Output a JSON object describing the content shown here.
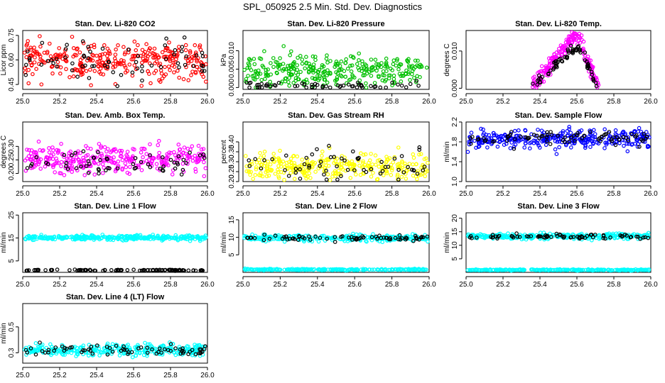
{
  "figure": {
    "title": "SPL_050925  2.5 Min. Std. Dev. Diagnostics",
    "colors": {
      "reference": "#000000",
      "red": "#ff0000",
      "green": "#00c000",
      "magenta": "#ff00ff",
      "yellow": "#ffff00",
      "blue": "#0000ff",
      "cyan": "#00ffff"
    }
  },
  "chart_data": [
    {
      "type": "scatter",
      "title": "Stan. Dev. Li-820 CO2",
      "ylabel": "Licor ppm",
      "xlim": [
        25.0,
        26.0
      ],
      "xticks": [
        "25.0",
        "25.2",
        "25.4",
        "25.6",
        "25.8",
        "26.0"
      ],
      "ylim": [
        0.42,
        0.78
      ],
      "yticks": [
        "0.45",
        "0.60",
        "0.75"
      ],
      "series": [
        {
          "name": "main",
          "color": "red",
          "pattern": "band",
          "n": 330,
          "center": 0.6,
          "spread": 0.055,
          "min": 0.44,
          "max": 0.77
        },
        {
          "name": "reference",
          "color": "reference",
          "pattern": "band",
          "n": 70,
          "center": 0.59,
          "spread": 0.06,
          "min": 0.44,
          "max": 0.75
        }
      ]
    },
    {
      "type": "scatter",
      "title": "Stan. Dev. Li-820 Pressure",
      "ylabel": "kPa",
      "xlim": [
        25.0,
        26.0
      ],
      "xticks": [
        "25.0",
        "25.2",
        "25.4",
        "25.6",
        "25.8",
        "26.0"
      ],
      "ylim": [
        -0.0005,
        0.0155
      ],
      "yticks": [
        "0.000",
        "0.005",
        "0.010"
      ],
      "series": [
        {
          "name": "main",
          "color": "green",
          "pattern": "band",
          "n": 320,
          "center": 0.0045,
          "spread": 0.0022,
          "min": 0.0,
          "max": 0.015
        },
        {
          "name": "reference",
          "color": "reference",
          "pattern": "band",
          "n": 60,
          "center": 0.0004,
          "spread": 0.0005,
          "min": 0.0,
          "max": 0.003
        }
      ]
    },
    {
      "type": "scatter",
      "title": "Stan. Dev. Li-820 Temp.",
      "ylabel": "degrees C",
      "xlim": [
        25.0,
        26.0
      ],
      "xticks": [
        "25.0",
        "25.2",
        "25.4",
        "25.6",
        "25.8",
        "26.0"
      ],
      "ylim": [
        -0.0003,
        0.0155
      ],
      "yticks": [
        "0.000",
        "0.010"
      ],
      "series": [
        {
          "name": "main",
          "color": "magenta",
          "pattern": "hump",
          "n": 250,
          "peak": 0.0145,
          "from": 25.35,
          "peakx": 25.6,
          "to": 25.72,
          "spread": 0.0012,
          "min": 0.0,
          "max": 0.0155
        },
        {
          "name": "reference",
          "color": "reference",
          "pattern": "hump",
          "n": 90,
          "peak": 0.0115,
          "from": 25.35,
          "peakx": 25.6,
          "to": 25.72,
          "spread": 0.0008,
          "min": 0.0,
          "max": 0.0155
        }
      ]
    },
    {
      "type": "scatter",
      "title": "Stan. Dev. Amb. Box Temp.",
      "ylabel": "degrees C",
      "xlim": [
        25.0,
        26.0
      ],
      "xticks": [
        "25.0",
        "25.2",
        "25.4",
        "25.6",
        "25.8",
        "26.0"
      ],
      "ylim": [
        0.17,
        0.39
      ],
      "yticks": [
        "0.20",
        "0.25",
        "0.30"
      ],
      "series": [
        {
          "name": "main",
          "color": "magenta",
          "pattern": "band",
          "n": 330,
          "center": 0.255,
          "spread": 0.025,
          "min": 0.19,
          "max": 0.38
        },
        {
          "name": "reference",
          "color": "reference",
          "pattern": "band",
          "n": 60,
          "center": 0.235,
          "spread": 0.022,
          "min": 0.19,
          "max": 0.32
        }
      ]
    },
    {
      "type": "scatter",
      "title": "Stan. Dev. Gas Stream RH",
      "ylabel": "percent",
      "xlim": [
        25.0,
        26.0
      ],
      "xticks": [
        "25.0",
        "25.2",
        "25.4",
        "25.6",
        "25.8",
        "26.0"
      ],
      "ylim": [
        0.2,
        0.5
      ],
      "yticks": [
        "0.20",
        "0.25",
        "0.30",
        "0.35",
        "0.40"
      ],
      "series": [
        {
          "name": "main",
          "color": "yellow",
          "pattern": "band",
          "n": 330,
          "center": 0.27,
          "spread": 0.035,
          "min": 0.2,
          "max": 0.49
        },
        {
          "name": "reference",
          "color": "reference",
          "pattern": "band",
          "n": 60,
          "center": 0.28,
          "spread": 0.04,
          "min": 0.21,
          "max": 0.46
        }
      ]
    },
    {
      "type": "scatter",
      "title": "Stan. Dev. Sample Flow",
      "ylabel": "ml/min",
      "xlim": [
        25.0,
        26.0
      ],
      "xticks": [
        "25.0",
        "25.2",
        "25.4",
        "25.6",
        "25.8",
        "26.0"
      ],
      "ylim": [
        1.0,
        2.2
      ],
      "yticks": [
        "1.0",
        "1.4",
        "1.8",
        "2.2"
      ],
      "series": [
        {
          "name": "main",
          "color": "blue",
          "pattern": "band",
          "n": 330,
          "center": 1.86,
          "spread": 0.09,
          "min": 1.05,
          "max": 2.2
        },
        {
          "name": "reference",
          "color": "reference",
          "pattern": "band",
          "n": 80,
          "center": 1.88,
          "spread": 0.07,
          "min": 1.3,
          "max": 2.0
        }
      ]
    },
    {
      "type": "scatter",
      "title": "Stan. Dev. Line 1 Flow",
      "ylabel": "ml/min",
      "xlim": [
        25.0,
        26.0
      ],
      "xticks": [
        "25.0",
        "25.2",
        "25.4",
        "25.6",
        "25.8",
        "26.0"
      ],
      "ylim": [
        0.0,
        26.0
      ],
      "yticks": [
        "5",
        "15",
        "25"
      ],
      "series": [
        {
          "name": "main",
          "color": "cyan",
          "pattern": "band",
          "n": 320,
          "center": 15.2,
          "spread": 0.5,
          "min": 5.0,
          "max": 25.0
        },
        {
          "name": "reference",
          "color": "reference",
          "pattern": "band",
          "n": 110,
          "center": 0.9,
          "spread": 0.15,
          "min": 0.3,
          "max": 1.5
        }
      ]
    },
    {
      "type": "scatter",
      "title": "Stan. Dev. Line 2 Flow",
      "ylabel": "ml/min",
      "xlim": [
        25.0,
        26.0
      ],
      "xticks": [
        "25.0",
        "25.2",
        "25.4",
        "25.6",
        "25.8",
        "26.0"
      ],
      "ylim": [
        0.0,
        17.0
      ],
      "yticks": [
        "5",
        "10",
        "15"
      ],
      "series": [
        {
          "name": "upper",
          "color": "cyan",
          "pattern": "band",
          "n": 300,
          "center": 9.8,
          "spread": 0.45,
          "min": 6.5,
          "max": 16.5
        },
        {
          "name": "lower",
          "color": "cyan",
          "pattern": "band",
          "n": 250,
          "center": 0.8,
          "spread": 0.1,
          "min": 0.5,
          "max": 1.2
        },
        {
          "name": "reference",
          "color": "reference",
          "pattern": "band",
          "n": 75,
          "center": 9.8,
          "spread": 0.4,
          "min": 6.5,
          "max": 11.0
        }
      ]
    },
    {
      "type": "scatter",
      "title": "Stan. Dev. Line 3 Flow",
      "ylabel": "ml/min",
      "xlim": [
        25.0,
        26.0
      ],
      "xticks": [
        "25.0",
        "25.2",
        "25.4",
        "25.6",
        "25.8",
        "26.0"
      ],
      "ylim": [
        0.0,
        22.0
      ],
      "yticks": [
        "5",
        "10",
        "15",
        "20"
      ],
      "series": [
        {
          "name": "upper",
          "color": "cyan",
          "pattern": "band",
          "n": 300,
          "center": 13.3,
          "spread": 0.5,
          "min": 5.0,
          "max": 21.0
        },
        {
          "name": "lower",
          "color": "cyan",
          "pattern": "band",
          "n": 250,
          "center": 0.9,
          "spread": 0.1,
          "min": 0.5,
          "max": 1.3
        },
        {
          "name": "reference",
          "color": "reference",
          "pattern": "band",
          "n": 75,
          "center": 13.2,
          "spread": 0.45,
          "min": 9.0,
          "max": 14.5
        }
      ]
    },
    {
      "type": "scatter",
      "title": "Stan. Dev. Line 4 (LT) Flow",
      "ylabel": "ml/min",
      "xlim": [
        25.0,
        26.0
      ],
      "xticks": [
        "25.0",
        "25.2",
        "25.4",
        "25.6",
        "25.8",
        "26.0"
      ],
      "ylim": [
        0.22,
        0.68
      ],
      "yticks": [
        "0.3",
        "0.5"
      ],
      "series": [
        {
          "name": "main",
          "color": "cyan",
          "pattern": "band",
          "n": 320,
          "center": 0.32,
          "spread": 0.022,
          "min": 0.25,
          "max": 0.66
        },
        {
          "name": "reference",
          "color": "reference",
          "pattern": "band",
          "n": 70,
          "center": 0.315,
          "spread": 0.02,
          "min": 0.26,
          "max": 0.4
        }
      ]
    }
  ]
}
